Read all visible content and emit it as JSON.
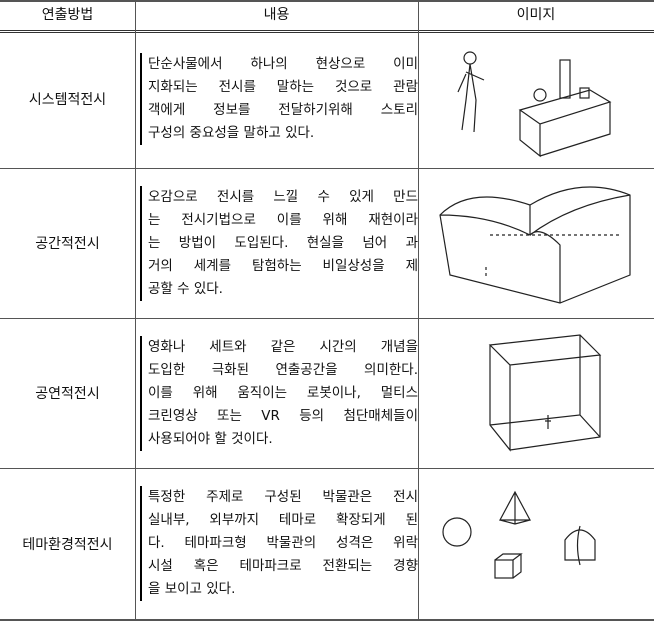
{
  "table": {
    "header": [
      "연출방법",
      "내용",
      "이미지"
    ],
    "rows": [
      {
        "name": "시스템적전시",
        "lines": [
          "단순사물에서 하나의 현상으로 이미",
          "지화되는 전시를 말하는 것으로 관람",
          "객에게 정보를 전달하기위해 스토리",
          "구성의 중요성을 말하고 있다."
        ]
      },
      {
        "name": "공간적전시",
        "lines": [
          "오감으로 전시를 느낄 수 있게 만드",
          "는 전시기법으로 이를 위해 재현이라",
          "는 방법이 도입된다. 현실을 넘어 과",
          "거의 세계를 탐험하는 비일상성을 제",
          "공할 수 있다."
        ]
      },
      {
        "name": "공연적전시",
        "lines": [
          "영화나 세트와 같은 시간의 개념을",
          "도입한 극화된 연출공간을 의미한다.",
          "이를 위해 움직이는 로봇이나, 멀티스",
          "크린영상 또는 VR 등의 첨단매체들이",
          "사용되어야 할 것이다."
        ]
      },
      {
        "name": "테마환경적전시",
        "lines": [
          "특정한 주제로 구성된 박물관은 전시",
          "실내부, 외부까지 테마로 확장되게 된",
          "다. 테마파크형 박물관의 성격은 위락",
          "시설 혹은 테마파크로 전환되는 경향",
          "을 보이고 있다."
        ]
      }
    ]
  }
}
